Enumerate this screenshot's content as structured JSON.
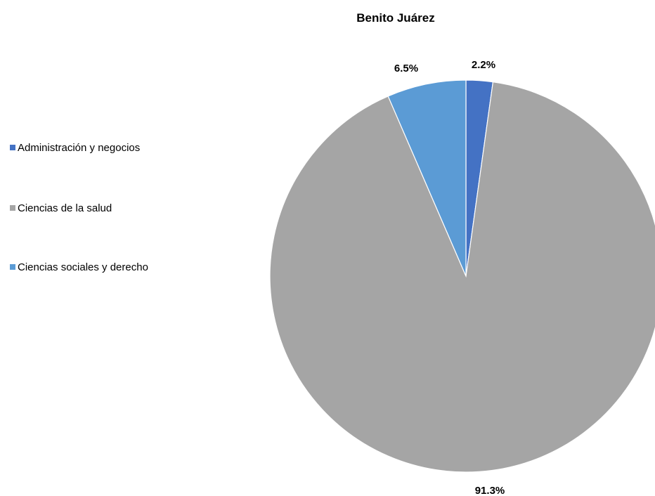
{
  "chart_data": {
    "type": "pie",
    "title": "Benito Juárez",
    "legend_position": "left",
    "slices": [
      {
        "label": "Administración y negocios",
        "value": 2.2,
        "display": "2.2%",
        "color": "#4472C4"
      },
      {
        "label": "Ciencias de la salud",
        "value": 91.3,
        "display": "91.3%",
        "color": "#A5A5A5"
      },
      {
        "label": "Ciencias sociales y derecho",
        "value": 6.5,
        "display": "6.5%",
        "color": "#5B9BD5"
      }
    ]
  }
}
